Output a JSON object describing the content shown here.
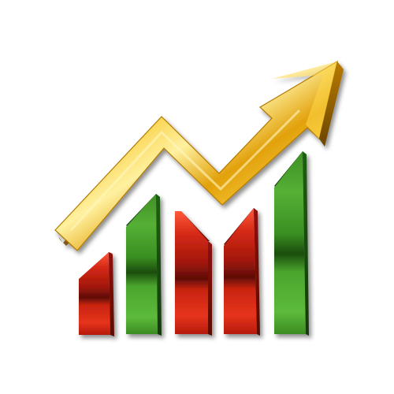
{
  "graphic": {
    "type": "growth-chart-icon",
    "bars": [
      {
        "color": "red"
      },
      {
        "color": "green"
      },
      {
        "color": "red"
      },
      {
        "color": "red"
      },
      {
        "color": "green"
      }
    ],
    "arrow": {
      "color": "gold",
      "direction": "up-right"
    },
    "colors": {
      "red": "#d62a17",
      "red_dark": "#8f1208",
      "green": "#3f9f2a",
      "green_dark": "#1f5f12",
      "gold": "#f6c21a",
      "gold_dark": "#b87a00",
      "shadow": "#6b4b00"
    }
  }
}
